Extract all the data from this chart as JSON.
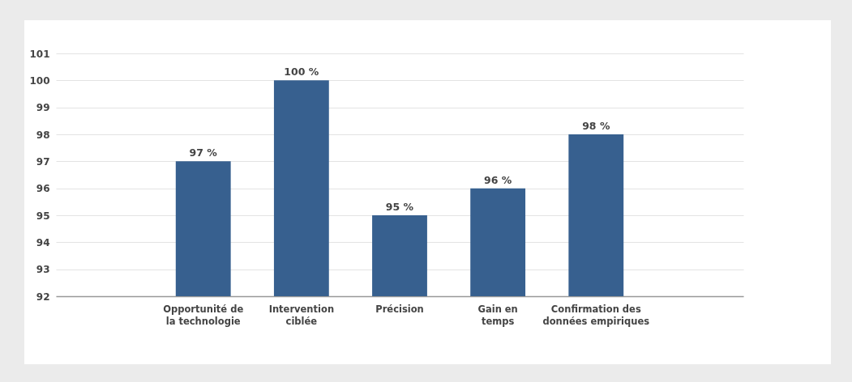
{
  "chart_data": {
    "type": "bar",
    "categories": [
      null,
      "Opportunité de la technologie",
      "Intervention ciblée",
      "Précision",
      "Gain en temps",
      "Confirmation des données empiriques",
      null
    ],
    "values": [
      null,
      97,
      100,
      95,
      96,
      98,
      null
    ],
    "value_labels": [
      null,
      "97 %",
      "100 %",
      "95 %",
      "96 %",
      "98 %",
      null
    ],
    "color": "#37608f",
    "ylim": [
      92,
      101
    ],
    "yticks": [
      92,
      93,
      94,
      95,
      96,
      97,
      98,
      99,
      100,
      101
    ],
    "grid": "y"
  }
}
